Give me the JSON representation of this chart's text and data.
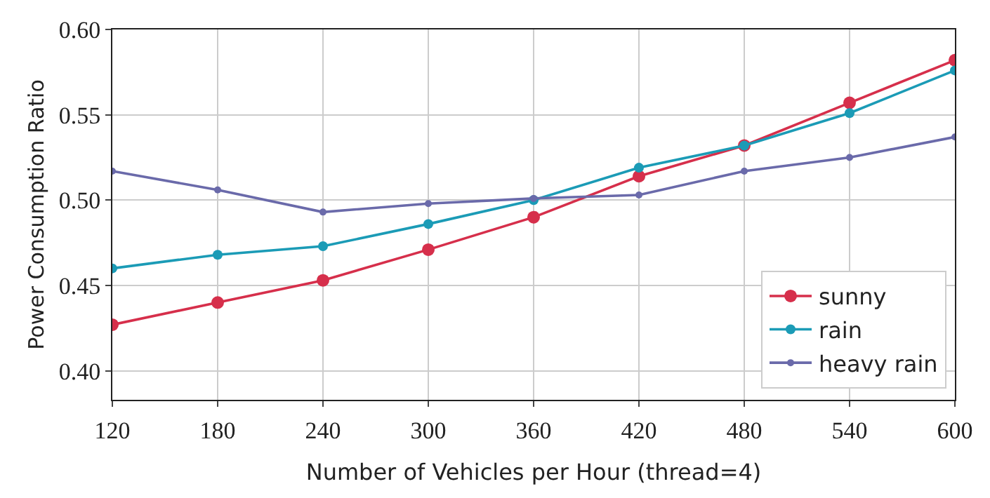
{
  "chart_data": {
    "type": "line",
    "xlabel": "Number of Vehicles per Hour (thread=4)",
    "ylabel": "Power Consumption Ratio",
    "x": [
      120,
      180,
      240,
      300,
      360,
      420,
      480,
      540,
      600
    ],
    "series": [
      {
        "name": "sunny",
        "color": "#d62f4b",
        "values": [
          0.427,
          0.44,
          0.453,
          0.471,
          0.49,
          0.514,
          0.532,
          0.557,
          0.582
        ]
      },
      {
        "name": "rain",
        "color": "#1b9bb6",
        "values": [
          0.46,
          0.468,
          0.473,
          0.486,
          0.5,
          0.519,
          0.532,
          0.551,
          0.576
        ]
      },
      {
        "name": "heavy rain",
        "color": "#6a6aaa",
        "values": [
          0.517,
          0.506,
          0.493,
          0.498,
          0.501,
          0.503,
          0.517,
          0.525,
          0.537
        ]
      }
    ],
    "xlim": [
      120,
      600
    ],
    "xticks": [
      120,
      180,
      240,
      300,
      360,
      420,
      480,
      540,
      600
    ],
    "ylim": [
      0.383,
      0.6
    ],
    "yticks": [
      {
        "value": 0.4,
        "label": "0.40"
      },
      {
        "value": 0.45,
        "label": "0.45"
      },
      {
        "value": 0.5,
        "label": "0.50"
      },
      {
        "value": 0.55,
        "label": "0.55"
      },
      {
        "value": 0.6,
        "label": "0.60"
      }
    ],
    "grid": true,
    "legend": "bottom right",
    "marker": "circle",
    "line_style": "solid"
  }
}
